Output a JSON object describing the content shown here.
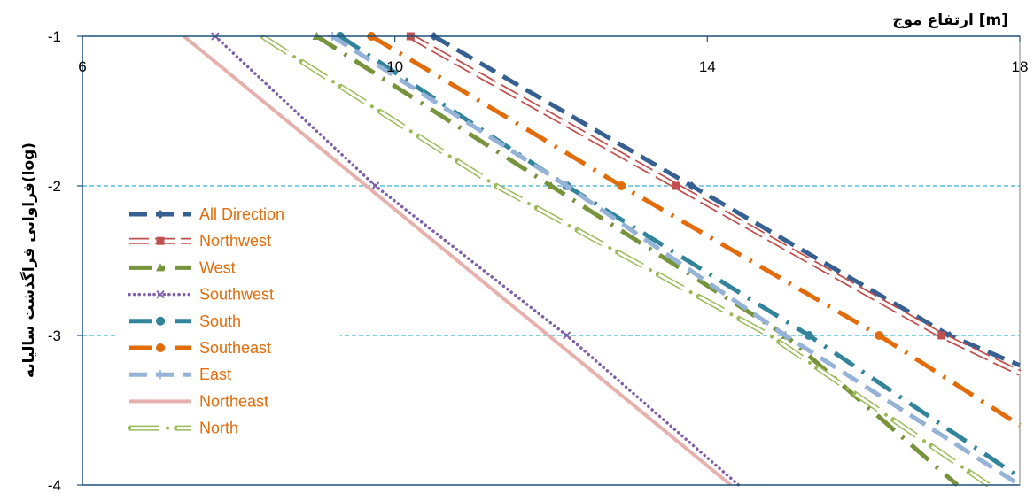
{
  "chart_data": {
    "type": "line",
    "xlabel": "ارتفاع موج  [m]",
    "ylabel": "فراوانی فراگذشت سالیانه(log)",
    "xlim": [
      6,
      18
    ],
    "ylim": [
      -4,
      -1
    ],
    "x_ticks": [
      6,
      10,
      14,
      18
    ],
    "x_tick_labels": [
      "6",
      "10",
      "14",
      "18"
    ],
    "y_ticks": [
      -1,
      -2,
      -3,
      -4
    ],
    "y_tick_labels": [
      "-1",
      "-2",
      "-3",
      "-4"
    ],
    "x_axis_position": "top",
    "grid": "horizontal dashed at -2 and -3",
    "legend_position": "left",
    "series": [
      {
        "name": "All Direction",
        "color": "#376092",
        "style": "dash",
        "marker": "diamond",
        "x": [
          10.5,
          13.8,
          17.1,
          18.0
        ],
        "y": [
          -1,
          -2,
          -3,
          -3.2
        ]
      },
      {
        "name": "Northwest",
        "color": "#C0504D",
        "style": "hollow",
        "marker": "square",
        "x": [
          10.2,
          13.6,
          17.0,
          18.0
        ],
        "y": [
          -1,
          -2,
          -3,
          -3.25
        ]
      },
      {
        "name": "West",
        "color": "#77933C",
        "style": "dashdot",
        "marker": "triangle",
        "x": [
          9.0,
          12.0,
          15.0,
          17.2
        ],
        "y": [
          -1,
          -2,
          -3,
          -4.0
        ]
      },
      {
        "name": "Southwest",
        "color": "#7F5FA8",
        "style": "dot",
        "marker": "x",
        "x": [
          7.7,
          9.75,
          12.2,
          14.4
        ],
        "y": [
          -1,
          -2,
          -3,
          -4.0
        ]
      },
      {
        "name": "South",
        "color": "#31849B",
        "style": "dashdot",
        "marker": "circle",
        "x": [
          9.3,
          12.2,
          15.3,
          18.0
        ],
        "y": [
          -1,
          -2,
          -3,
          -3.95
        ]
      },
      {
        "name": "Southeast",
        "color": "#E36C0A",
        "style": "dashdot",
        "marker": "circle",
        "x": [
          9.7,
          12.9,
          16.2,
          18.0
        ],
        "y": [
          -1,
          -2,
          -3,
          -3.6
        ]
      },
      {
        "name": "East",
        "color": "#95B3D7",
        "style": "dash",
        "marker": "plus",
        "x": [
          9.2,
          12.2,
          15.0,
          18.0
        ],
        "y": [
          -1,
          -2,
          -3,
          -4.0
        ]
      },
      {
        "name": "Northeast",
        "color": "#E6B0AC",
        "style": "solid",
        "marker": "none",
        "x": [
          7.3,
          14.3
        ],
        "y": [
          -1,
          -4.0
        ]
      },
      {
        "name": "North",
        "color": "#9BBB59",
        "style": "hollowdot",
        "marker": "none",
        "x": [
          8.3,
          11.3,
          14.8,
          17.6
        ],
        "y": [
          -1,
          -2,
          -3,
          -4.0
        ]
      }
    ]
  }
}
